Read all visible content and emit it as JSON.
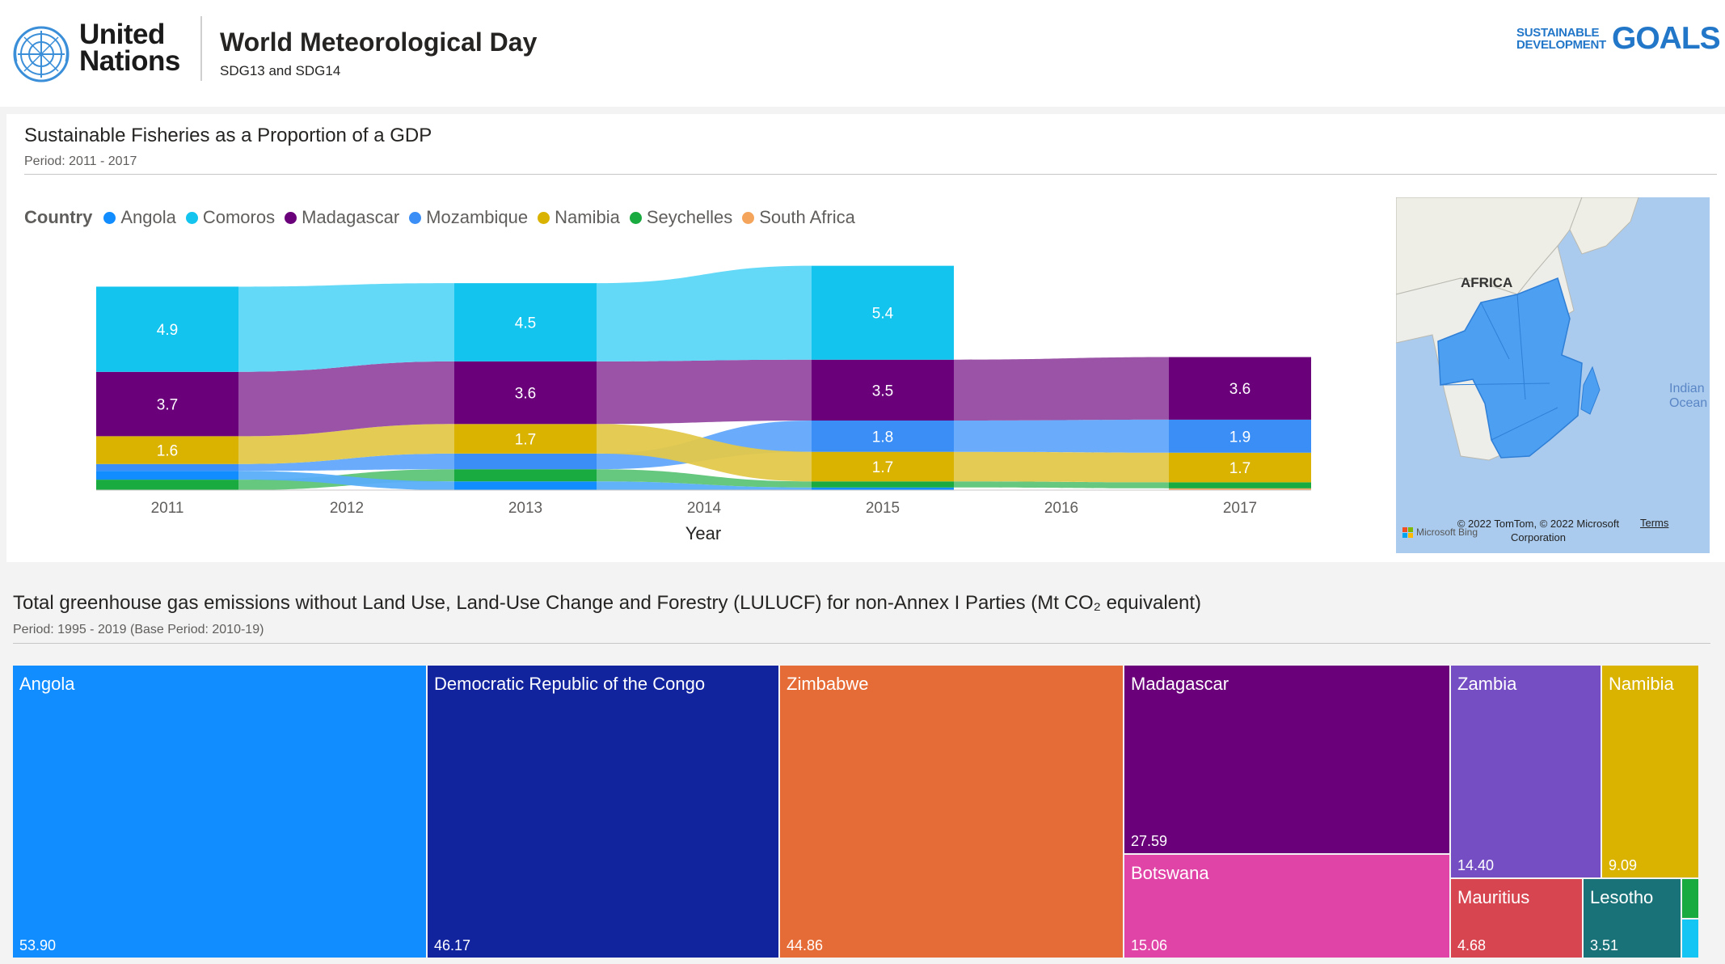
{
  "header": {
    "un_logo_text_line1": "United",
    "un_logo_text_line2": "Nations",
    "title": "World Meteorological Day",
    "subtitle": "SDG13 and SDG14",
    "sdg_logo_line1": "SUSTAINABLE",
    "sdg_logo_line2": "DEVELOPMENT",
    "sdg_logo_big": "GOALS"
  },
  "fisheries": {
    "title": "Sustainable Fisheries as a Proportion of a GDP",
    "period": "Period: 2011 - 2017",
    "legend_title": "Country",
    "legend": [
      {
        "name": "Angola",
        "color": "#118dff"
      },
      {
        "name": "Comoros",
        "color": "#12c4ee"
      },
      {
        "name": "Madagascar",
        "color": "#6b007b"
      },
      {
        "name": "Mozambique",
        "color": "#3b8ef5"
      },
      {
        "name": "Namibia",
        "color": "#d9b300"
      },
      {
        "name": "Seychelles",
        "color": "#1aab40"
      },
      {
        "name": "South Africa",
        "color": "#f5a55b"
      }
    ],
    "xlabel": "Year",
    "map": {
      "label": "AFRICA",
      "ocean_label": "Indian Ocean",
      "attribution": "© 2022 TomTom, © 2022 Microsoft Corporation",
      "terms": "Terms",
      "bing": "Microsoft Bing"
    }
  },
  "chart_data": {
    "type": "area",
    "subtype": "ribbon",
    "x": [
      "2011",
      "2012",
      "2013",
      "2014",
      "2015",
      "2016",
      "2017"
    ],
    "series": [
      {
        "name": "Comoros",
        "values": [
          4.9,
          null,
          4.5,
          null,
          5.4,
          null,
          null
        ]
      },
      {
        "name": "Madagascar",
        "values": [
          3.7,
          null,
          3.6,
          null,
          3.5,
          null,
          3.6
        ]
      },
      {
        "name": "Mozambique",
        "values": [
          null,
          null,
          null,
          null,
          1.8,
          null,
          1.9
        ]
      },
      {
        "name": "Namibia",
        "values": [
          1.6,
          null,
          1.7,
          null,
          1.7,
          null,
          1.7
        ]
      }
    ],
    "xlabel": "Year",
    "legend_position": "top-left"
  },
  "emissions": {
    "title": "Total greenhouse gas emissions without Land Use, Land-Use Change and Forestry (LULUCF) for non-Annex I Parties (Mt CO₂ equivalent)",
    "period": "Period: 1995 - 2019 (Base Period: 2010-19)",
    "treemap": [
      {
        "name": "Angola",
        "value": "53.90",
        "color": "#118dff"
      },
      {
        "name": "Democratic Republic of the Congo",
        "value": "46.17",
        "color": "#12239e"
      },
      {
        "name": "Zimbabwe",
        "value": "44.86",
        "color": "#e66c37"
      },
      {
        "name": "Madagascar",
        "value": "27.59",
        "color": "#6b007b"
      },
      {
        "name": "Botswana",
        "value": "15.06",
        "color": "#e044a7"
      },
      {
        "name": "Zambia",
        "value": "14.40",
        "color": "#744ec2"
      },
      {
        "name": "Namibia",
        "value": "9.09",
        "color": "#d9b300"
      },
      {
        "name": "Mauritius",
        "value": "4.68",
        "color": "#d64550"
      },
      {
        "name": "Lesotho",
        "value": "3.51",
        "color": "#197278"
      },
      {
        "name": "",
        "value": "",
        "color": "#1aab40"
      },
      {
        "name": "",
        "value": "",
        "color": "#15c6f4"
      }
    ]
  }
}
